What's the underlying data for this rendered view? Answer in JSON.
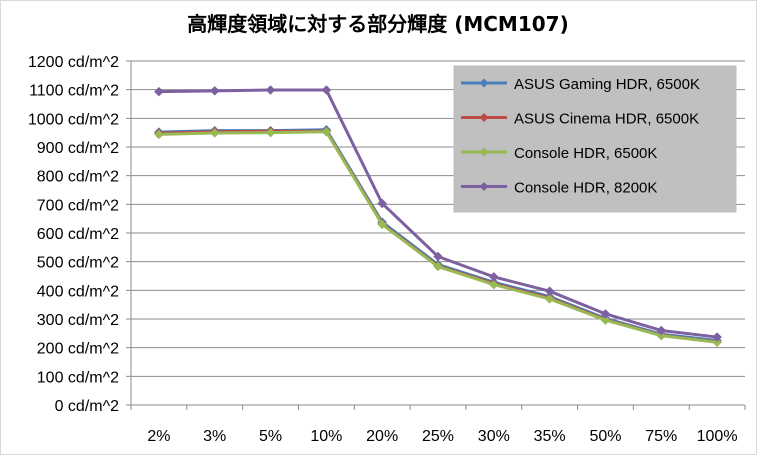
{
  "chart_data": {
    "type": "line",
    "title": "高輝度領域に対する部分輝度 (MCM107)",
    "categories": [
      "2%",
      "3%",
      "5%",
      "10%",
      "20%",
      "25%",
      "30%",
      "35%",
      "50%",
      "75%",
      "100%"
    ],
    "y_tick_labels": [
      "0 cd/m^2",
      "100 cd/m^2",
      "200 cd/m^2",
      "300 cd/m^2",
      "400 cd/m^2",
      "500 cd/m^2",
      "600 cd/m^2",
      "700 cd/m^2",
      "800 cd/m^2",
      "900 cd/m^2",
      "1000 cd/m^2",
      "1100 cd/m^2",
      "1200 cd/m^2"
    ],
    "ylim": [
      0,
      1200
    ],
    "xlabel": "",
    "ylabel": "",
    "grid": "horizontal",
    "legend_position": "top-right",
    "series": [
      {
        "name": "ASUS Gaming HDR, 6500K",
        "color": "#4a7ebb",
        "marker": "diamond",
        "values": [
          952,
          957,
          957,
          960,
          638,
          490,
          428,
          378,
          302,
          247,
          225
        ]
      },
      {
        "name": "ASUS Cinema HDR, 6500K",
        "color": "#be4b48",
        "marker": "diamond",
        "values": [
          948,
          953,
          955,
          955,
          632,
          485,
          423,
          373,
          298,
          243,
          220
        ]
      },
      {
        "name": "Console HDR, 6500K",
        "color": "#98b954",
        "marker": "diamond",
        "values": [
          944,
          949,
          950,
          953,
          630,
          483,
          420,
          370,
          296,
          242,
          219
        ]
      },
      {
        "name": "Console HDR, 8200K",
        "color": "#7d60a0",
        "marker": "diamond",
        "values": [
          1093,
          1096,
          1099,
          1099,
          703,
          518,
          447,
          397,
          318,
          260,
          237
        ]
      }
    ]
  }
}
